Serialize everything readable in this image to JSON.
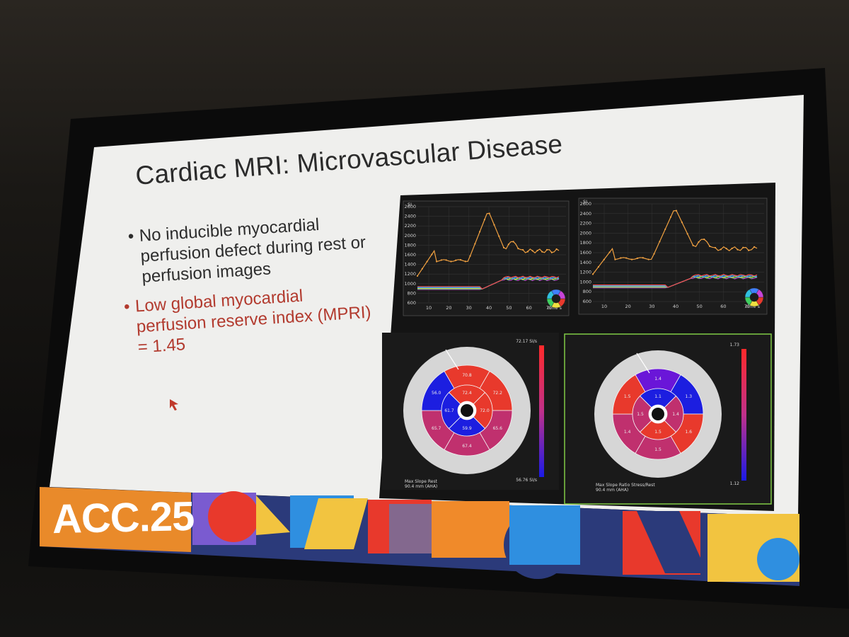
{
  "slide": {
    "title": "Cardiac MRI: Microvascular Disease",
    "bullets": [
      {
        "lines": [
          "No inducible myocardial",
          "perfusion defect during rest or",
          "perfusion images"
        ],
        "highlight": false
      },
      {
        "lines": [
          "Low global myocardial",
          "perfusion reserve index (MPRI)",
          "= 1.45"
        ],
        "highlight": true
      }
    ],
    "logo": "ACC.25",
    "colors": {
      "highlight_text": "#b23a2e",
      "slide_bg": "#f1f1ef",
      "logo_bg": "#e98a2a"
    }
  },
  "charts": {
    "left": {
      "ylabel": "SI",
      "yticks": [
        "2600",
        "2400",
        "2200",
        "2000",
        "1800",
        "1600",
        "1400",
        "1200",
        "1000",
        "800",
        "600"
      ],
      "xticks": [
        "10",
        "20",
        "30",
        "40",
        "50",
        "60",
        "70"
      ],
      "xlabel": "time s"
    },
    "right": {
      "ylabel": "SI",
      "yticks": [
        "2600",
        "2400",
        "2200",
        "2000",
        "1800",
        "1600",
        "1400",
        "1200",
        "1000",
        "800",
        "600"
      ],
      "xticks": [
        "10",
        "20",
        "30",
        "40",
        "50",
        "60",
        "70"
      ],
      "xlabel": "time s"
    }
  },
  "bullseye": {
    "rest": {
      "scale_max": "72.17 SI/s",
      "scale_min": "56.76 SI/s",
      "caption_lines": [
        "Max Slope Rest",
        "90.4 mm (AHA)"
      ],
      "outer": [
        "70.8",
        "72.2",
        "65.6",
        "67.4",
        "65.7",
        "56.0"
      ],
      "mid": [
        "72.4",
        "72.0",
        "59.9",
        "61.7"
      ],
      "apex": [],
      "colors": {
        "red": "#e8392c",
        "blue": "#1c1ee0",
        "magenta": "#c0306e"
      }
    },
    "stress": {
      "scale_max": "1.73",
      "scale_min": "1.12",
      "caption_lines": [
        "Max Slope Ratio Stress/Rest",
        "90.4 mm (AHA)"
      ],
      "outer": [
        "1.4",
        "1.3",
        "1.6",
        "1.5",
        "1.4",
        "1.5"
      ],
      "mid": [
        "1.1",
        "1.4",
        "1.5",
        "1.5"
      ],
      "apex": [],
      "colors": {
        "red": "#e8392c",
        "blue": "#1c1ee0",
        "purple": "#6a16d8"
      }
    }
  }
}
